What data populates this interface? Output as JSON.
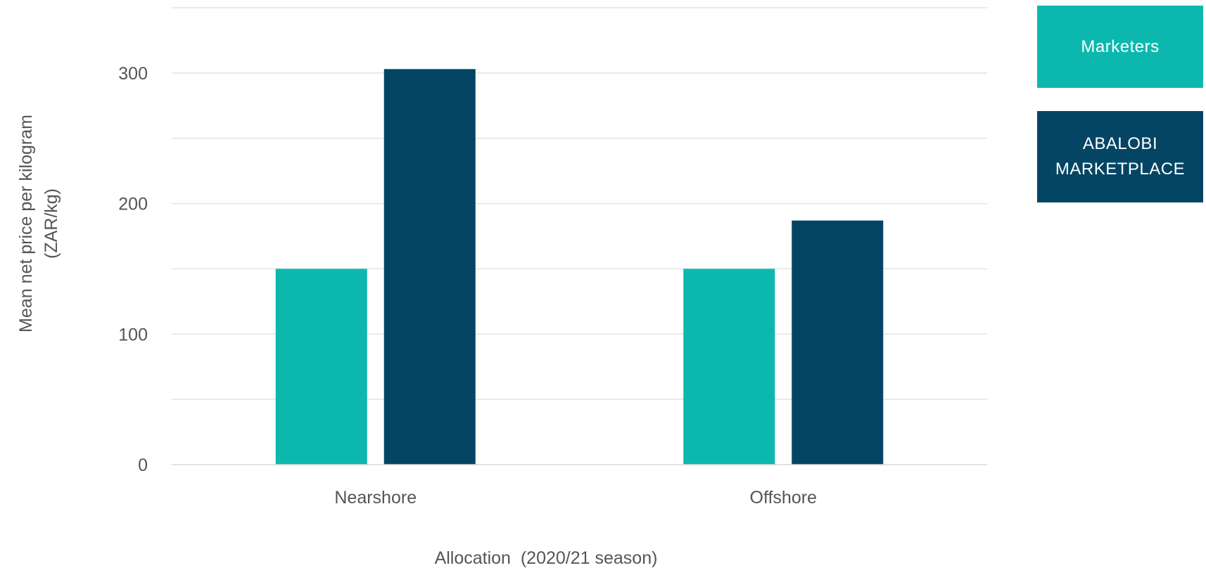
{
  "chart_data": {
    "type": "bar",
    "categories": [
      "Nearshore",
      "Offshore"
    ],
    "series": [
      {
        "name": "Marketers",
        "values": [
          150,
          150
        ],
        "color": "#0CB8AE"
      },
      {
        "name": "ABALOBI MARKETPLACE",
        "values": [
          303,
          187
        ],
        "color": "#044564"
      }
    ],
    "title": "",
    "xlabel": "Allocation  (2020/21 season)",
    "ylabel": [
      "Mean net price per kilogram",
      "(ZAR/kg)"
    ],
    "ylim": [
      0,
      350
    ],
    "yticks": [
      0,
      100,
      200,
      300
    ],
    "minor_gridlines": true,
    "legend_position": "top-right",
    "legend_labels": [
      "Marketers",
      "ABALOBI\nMARKETPLACE"
    ]
  }
}
